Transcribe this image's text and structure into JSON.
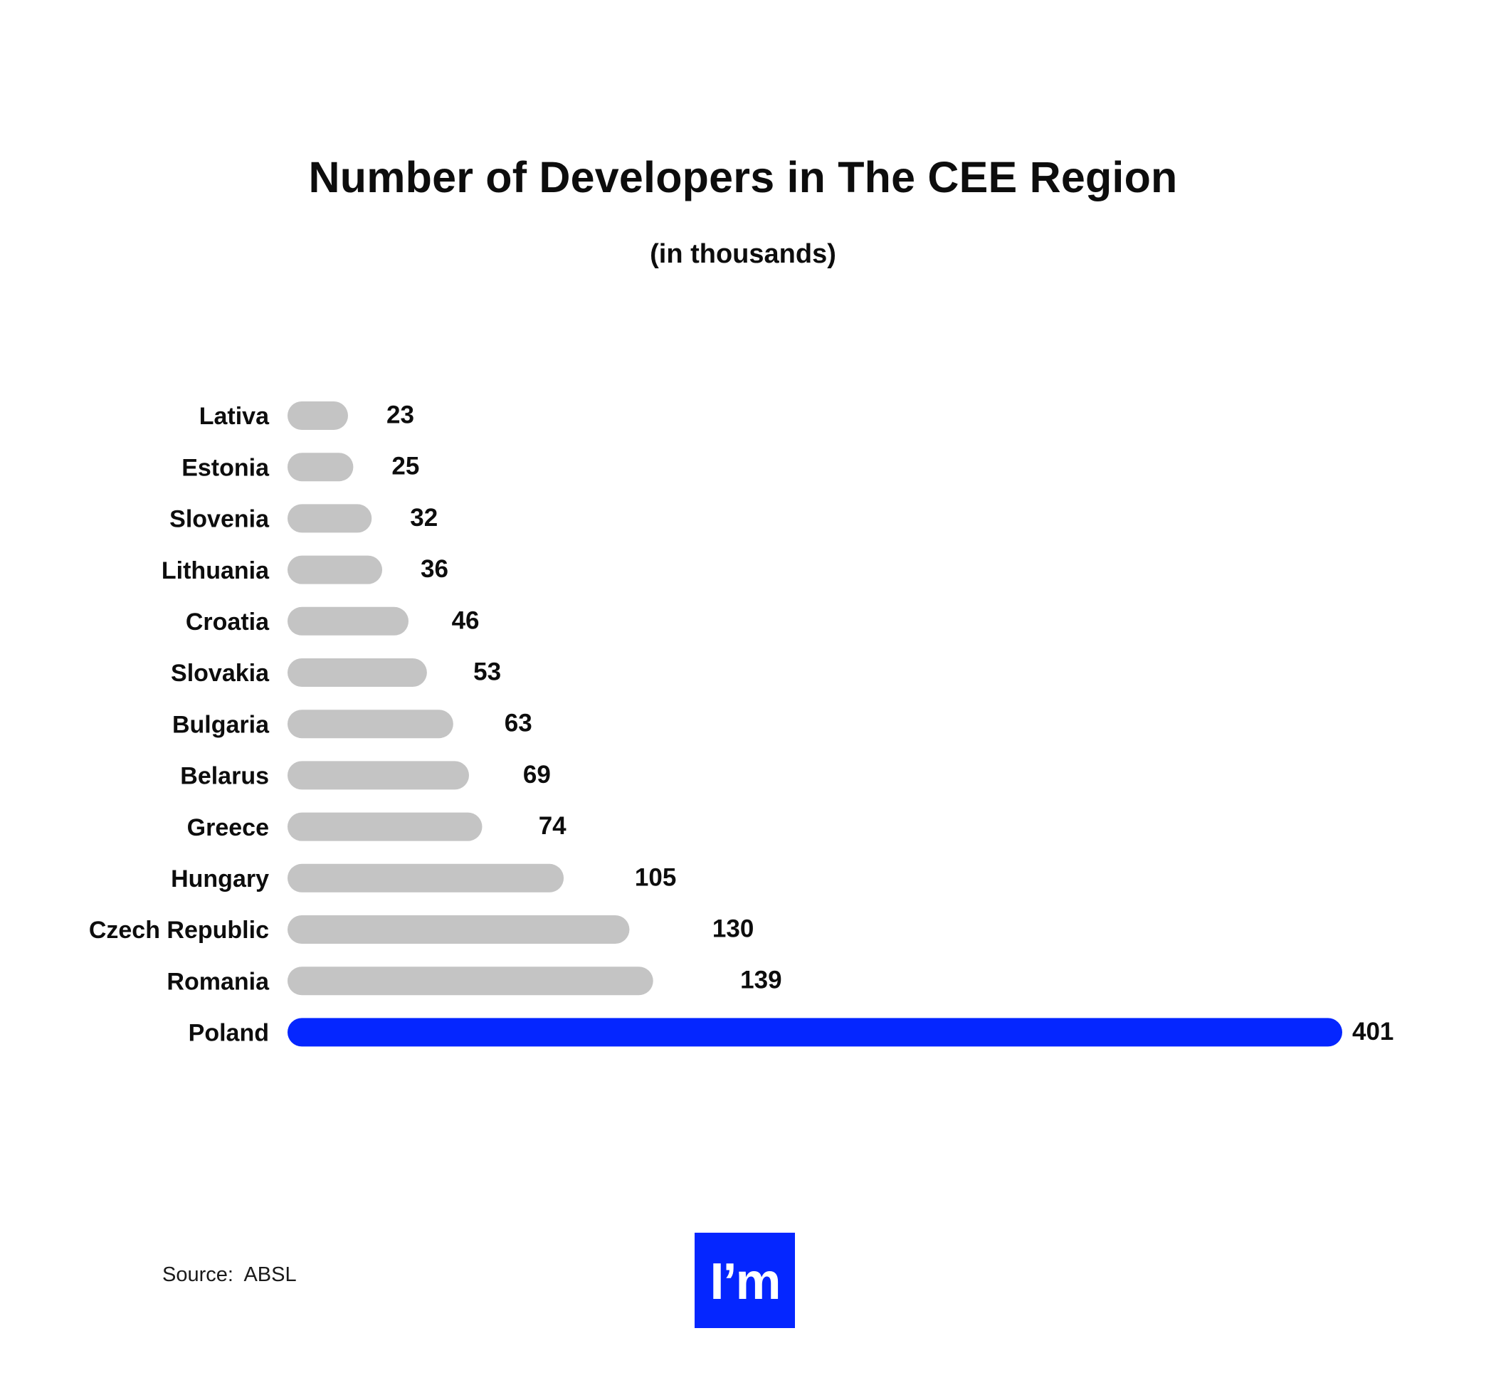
{
  "chart_data": {
    "type": "bar",
    "orientation": "horizontal",
    "title": "Number of Developers in The CEE Region",
    "subtitle": "(in thousands)",
    "categories": [
      "Lativa",
      "Estonia",
      "Slovenia",
      "Lithuania",
      "Croatia",
      "Slovakia",
      "Bulgaria",
      "Belarus",
      "Greece",
      "Hungary",
      "Czech Republic",
      "Romania",
      "Poland"
    ],
    "values": [
      23,
      25,
      32,
      36,
      46,
      53,
      63,
      69,
      74,
      105,
      130,
      139,
      401
    ],
    "value_labels": [
      "23",
      "25",
      "32",
      "36",
      "46",
      "53",
      "63",
      "69",
      "74",
      "105",
      "130",
      "139",
      "401"
    ],
    "xlim": [
      0,
      401
    ],
    "grid": false,
    "legend": "none",
    "colors": {
      "default_bar": "#c4c4c4",
      "highlight_bar": "#0526ff"
    },
    "highlight": "Poland"
  },
  "footer": {
    "source": "Source:  ABSL"
  },
  "logo": {
    "text": "I’m",
    "background": "#0526ff"
  }
}
